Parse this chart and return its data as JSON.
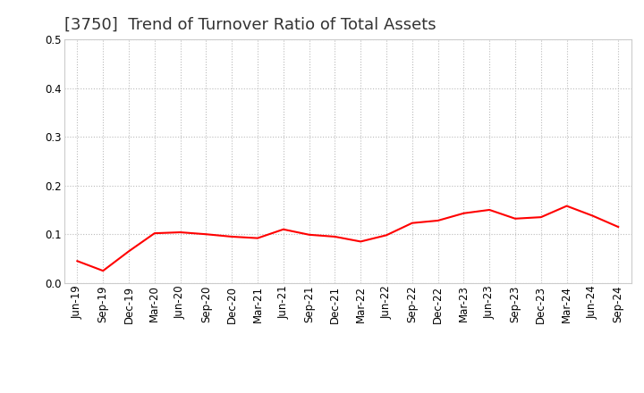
{
  "title": "[3750]  Trend of Turnover Ratio of Total Assets",
  "x_labels": [
    "Jun-19",
    "Sep-19",
    "Dec-19",
    "Mar-20",
    "Jun-20",
    "Sep-20",
    "Dec-20",
    "Mar-21",
    "Jun-21",
    "Sep-21",
    "Dec-21",
    "Mar-22",
    "Jun-22",
    "Sep-22",
    "Dec-22",
    "Mar-23",
    "Jun-23",
    "Sep-23",
    "Dec-23",
    "Mar-24",
    "Jun-24",
    "Sep-24"
  ],
  "y_values": [
    0.045,
    0.025,
    0.065,
    0.102,
    0.104,
    0.1,
    0.095,
    0.092,
    0.11,
    0.099,
    0.095,
    0.085,
    0.098,
    0.123,
    0.128,
    0.143,
    0.15,
    0.132,
    0.135,
    0.158,
    0.138,
    0.115
  ],
  "line_color": "#FF0000",
  "line_width": 1.5,
  "ylim": [
    0.0,
    0.5
  ],
  "yticks": [
    0.0,
    0.1,
    0.2,
    0.3,
    0.4,
    0.5
  ],
  "grid_color": "#bbbbbb",
  "grid_style": "dotted",
  "bg_color": "#ffffff",
  "title_fontsize": 13,
  "title_color": "#333333",
  "tick_fontsize": 8.5
}
